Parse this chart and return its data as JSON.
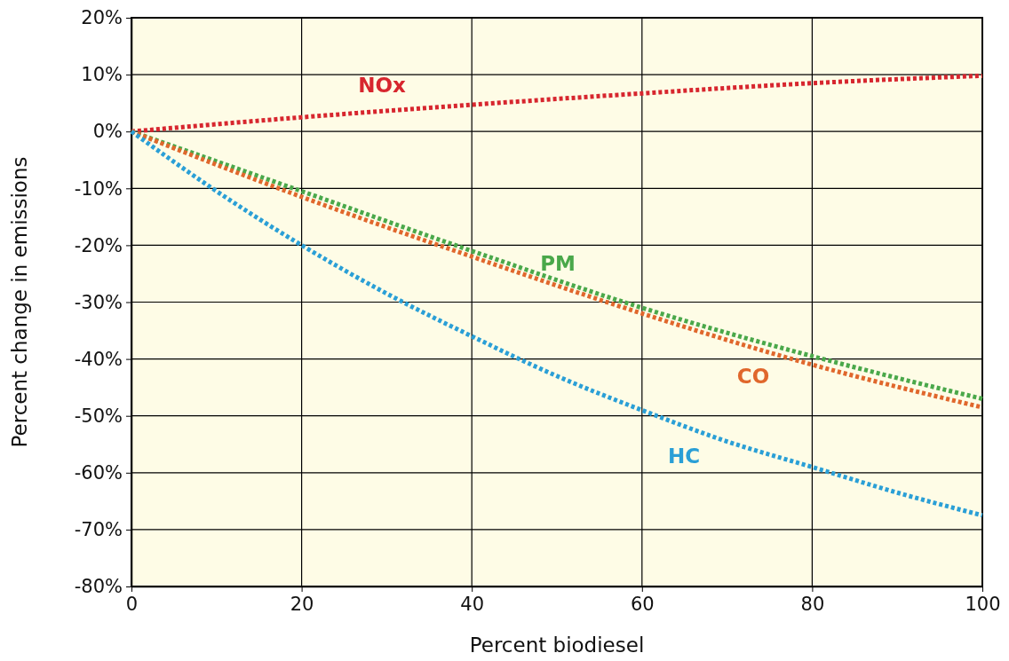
{
  "chart_data": {
    "type": "line",
    "xlabel": "Percent biodiesel",
    "ylabel": "Percent change in emissions",
    "xlim": [
      0,
      100
    ],
    "xticks": [
      0,
      20,
      40,
      60,
      80,
      100
    ],
    "ylim": [
      -80,
      20
    ],
    "yticks": [
      {
        "value": 20,
        "label": "20%"
      },
      {
        "value": 10,
        "label": "10%"
      },
      {
        "value": 0,
        "label": "0%"
      },
      {
        "value": -10,
        "label": "-10%"
      },
      {
        "value": -20,
        "label": "-20%"
      },
      {
        "value": -30,
        "label": "-30%"
      },
      {
        "value": -40,
        "label": "-40%"
      },
      {
        "value": -50,
        "label": "-50%"
      },
      {
        "value": -60,
        "label": "-60%"
      },
      {
        "value": -70,
        "label": "-70%"
      },
      {
        "value": -80,
        "label": "-80%"
      }
    ],
    "grid": true,
    "line_style": "dotted",
    "marker": "none",
    "series": [
      {
        "name": "NOx",
        "color": "#d7262e",
        "x": [
          0,
          20,
          40,
          60,
          80,
          100
        ],
        "values": [
          0,
          2.5,
          4.7,
          6.7,
          8.5,
          9.8
        ]
      },
      {
        "name": "PM",
        "color": "#4aa84a",
        "x": [
          0,
          20,
          40,
          60,
          80,
          100
        ],
        "values": [
          0,
          -10.5,
          -21,
          -31,
          -39.5,
          -47
        ]
      },
      {
        "name": "CO",
        "color": "#e0672c",
        "x": [
          0,
          20,
          40,
          60,
          80,
          100
        ],
        "values": [
          0,
          -11.5,
          -22,
          -32,
          -41,
          -48.5
        ]
      },
      {
        "name": "HC",
        "color": "#2a9fd6",
        "x": [
          0,
          10,
          20,
          30,
          40,
          50,
          60,
          70,
          80,
          90,
          100
        ],
        "values": [
          0,
          -10.5,
          -20,
          -28.5,
          -36,
          -43,
          -49,
          -54.5,
          -59,
          -63.5,
          -67.5
        ]
      }
    ]
  }
}
